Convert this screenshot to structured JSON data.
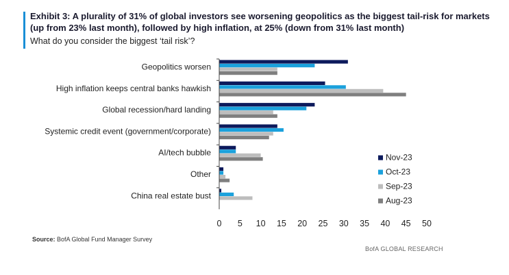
{
  "header": {
    "title": "Exhibit 3: A plurality of 31% of global investors see worsening geopolitics as the biggest tail-risk for markets (up from 23% last month), followed by high inflation, at 25% (down from 31% last month)",
    "subtitle": "What do you consider the biggest ‘tail risk’?"
  },
  "footer": {
    "source_label": "Source:",
    "source_text": "BofA Global Fund Manager Survey",
    "brand": "BofA GLOBAL RESEARCH"
  },
  "colors": {
    "accent": "#1a8fd6",
    "nov23": "#0c1a5c",
    "oct23": "#1ba1dc",
    "sep23": "#bdbdbd",
    "aug23": "#7f7f7f"
  },
  "chart_data": {
    "type": "bar",
    "orientation": "horizontal",
    "categories": [
      "Geopolitics worsen",
      "High inflation keeps central banks hawkish",
      "Global recession/hard landing",
      "Systemic credit event (government/corporate)",
      "AI/tech bubble",
      "Other",
      "China real estate bust"
    ],
    "series": [
      {
        "name": "Nov-23",
        "color": "#0c1a5c",
        "values": [
          31,
          25.5,
          23,
          14,
          4,
          1,
          0.5
        ]
      },
      {
        "name": "Oct-23",
        "color": "#1ba1dc",
        "values": [
          23,
          30.5,
          21,
          15.5,
          4,
          1,
          3.5
        ]
      },
      {
        "name": "Sep-23",
        "color": "#bdbdbd",
        "values": [
          14,
          39.5,
          13,
          13,
          10,
          1.5,
          8
        ]
      },
      {
        "name": "Aug-23",
        "color": "#7f7f7f",
        "values": [
          14,
          45,
          14,
          12,
          10.5,
          2.5,
          0
        ]
      }
    ],
    "xlim": [
      0,
      50
    ],
    "xticks": [
      0,
      5,
      10,
      15,
      20,
      25,
      30,
      35,
      40,
      45,
      50
    ],
    "grid": false,
    "legend_position": "bottom-right"
  }
}
